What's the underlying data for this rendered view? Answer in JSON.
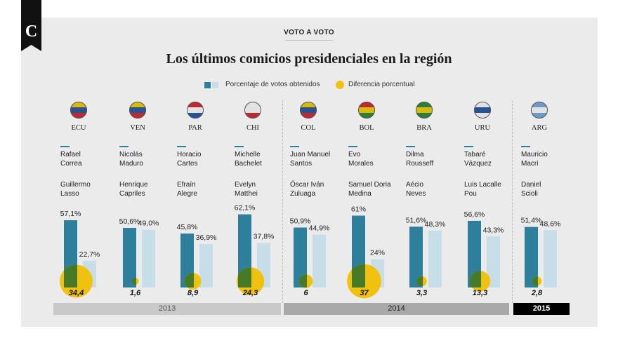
{
  "kicker": "VOTO A VOTO",
  "title": "Los últimos comicios presidenciales en la región",
  "legend": {
    "votes": "Porcentaje de votos obtenidos",
    "diff": "Diferencia porcentual"
  },
  "colors": {
    "winner": "#2e7f9b",
    "runner_up": "#c7dde7",
    "diff": "#f0c20e",
    "overlap": "#467a27",
    "year_bar": "#c9c9c9",
    "year_bar_2014": "#a9a9a9",
    "year_bar_2015": "#000000"
  },
  "chart_data": {
    "type": "bar",
    "categories": [
      "ECU",
      "VEN",
      "PAR",
      "CHI",
      "COL",
      "BOL",
      "BRA",
      "URU",
      "ARG"
    ],
    "years": [
      {
        "label": "2013",
        "countries": [
          "ECU",
          "VEN",
          "PAR",
          "CHI"
        ]
      },
      {
        "label": "2014",
        "countries": [
          "COL",
          "BOL",
          "BRA",
          "URU"
        ]
      },
      {
        "label": "2015",
        "countries": [
          "ARG"
        ]
      }
    ],
    "series": [
      {
        "name": "winner",
        "values": [
          57.1,
          50.6,
          45.8,
          62.1,
          50.9,
          61,
          51.6,
          56.6,
          51.4
        ],
        "labels": [
          "57,1%",
          "50,6%",
          "45,8%",
          "62,1%",
          "50,9%",
          "61%",
          "51,6%",
          "56,6%",
          "51,4%"
        ]
      },
      {
        "name": "runner_up",
        "values": [
          22.7,
          49.0,
          36.9,
          37.8,
          44.9,
          24,
          48.3,
          43.3,
          48.6
        ],
        "labels": [
          "22,7%",
          "49,0%",
          "36,9%",
          "37,8%",
          "44,9%",
          "24%",
          "48,3%",
          "43,3%",
          "48,6%"
        ]
      },
      {
        "name": "diferencia",
        "values": [
          34.4,
          1.6,
          8.9,
          24.3,
          6,
          37,
          3.3,
          13.3,
          2.8
        ],
        "labels": [
          "34,4",
          "1,6",
          "8,9",
          "24,3",
          "6",
          "37",
          "3,3",
          "13,3",
          "2,8"
        ]
      }
    ],
    "candidates": [
      {
        "winner": [
          "Rafael",
          "Correa"
        ],
        "runner_up": [
          "Guillermo",
          "Lasso"
        ]
      },
      {
        "winner": [
          "Nicolás",
          "Maduro"
        ],
        "runner_up": [
          "Henrique",
          "Capriles"
        ]
      },
      {
        "winner": [
          "Horacio",
          "Cartes"
        ],
        "runner_up": [
          "Efraín",
          "Alegre"
        ]
      },
      {
        "winner": [
          "Michelle",
          "Bachelet"
        ],
        "runner_up": [
          "Evelyn",
          "Matthei"
        ]
      },
      {
        "winner": [
          "Juan Manuel",
          "Santos"
        ],
        "runner_up": [
          "Óscar Iván",
          "Zuluaga"
        ]
      },
      {
        "winner": [
          "Evo",
          "Morales"
        ],
        "runner_up": [
          "Samuel Doria",
          "Medina"
        ]
      },
      {
        "winner": [
          "Dilma",
          "Rousseff"
        ],
        "runner_up": [
          "Aécio",
          "Neves"
        ]
      },
      {
        "winner": [
          "Tabaré",
          "Vázquez"
        ],
        "runner_up": [
          "Luis Lacalle",
          "Pou"
        ]
      },
      {
        "winner": [
          "Mauricio",
          "Macri"
        ],
        "runner_up": [
          "Daniel",
          "Scioli"
        ]
      }
    ],
    "flags": [
      {
        "top": "#f5d000",
        "mid": "#2356a8",
        "bot": "#d6242f"
      },
      {
        "top": "#f5d000",
        "mid": "#2356a8",
        "bot": "#d6242f"
      },
      {
        "top": "#d6242f",
        "mid": "#ffffff",
        "bot": "#2356a8"
      },
      {
        "top": "#ffffff",
        "mid": "#ffffff",
        "bot": "#d6242f"
      },
      {
        "top": "#f5d000",
        "mid": "#2356a8",
        "bot": "#d6242f"
      },
      {
        "top": "#d6242f",
        "mid": "#f5d000",
        "bot": "#2c8a3c"
      },
      {
        "top": "#2c8a3c",
        "mid": "#f5d000",
        "bot": "#2c8a3c"
      },
      {
        "top": "#ffffff",
        "mid": "#2356a8",
        "bot": "#ffffff"
      },
      {
        "top": "#74acdf",
        "mid": "#ffffff",
        "bot": "#74acdf"
      }
    ]
  }
}
